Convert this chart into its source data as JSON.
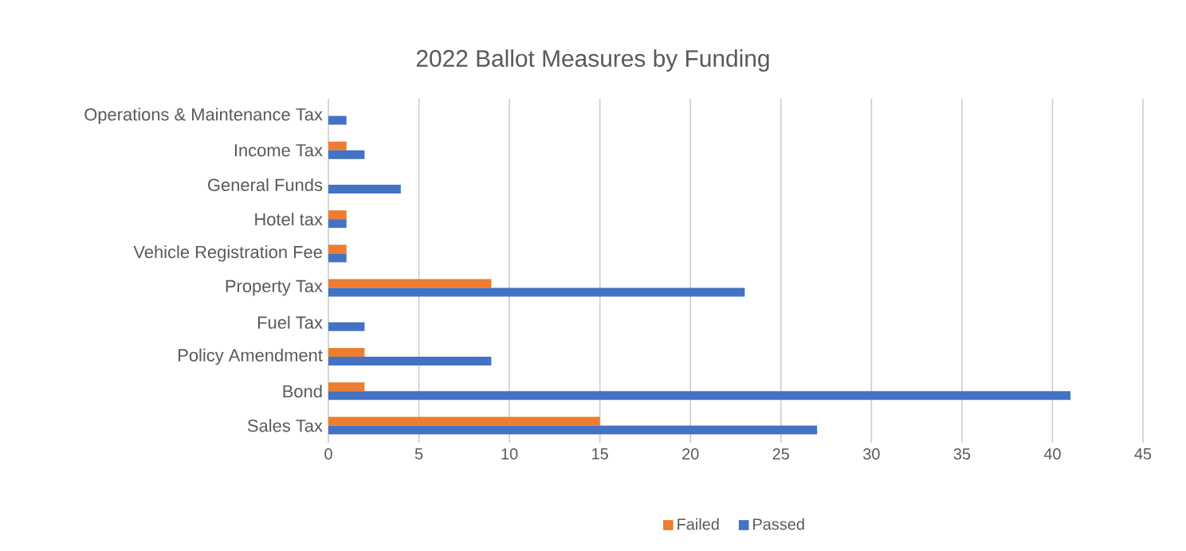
{
  "chart_data": {
    "type": "bar",
    "orientation": "horizontal",
    "title": "2022 Ballot Measures by Funding",
    "categories": [
      "Operations & Maintenance Tax",
      "Income Tax",
      "General Funds",
      "Hotel tax",
      "Vehicle Registration Fee",
      "Property Tax",
      "Fuel Tax",
      "Policy Amendment",
      "Bond",
      "Sales Tax"
    ],
    "series": [
      {
        "name": "Failed",
        "color": "#ed7d31",
        "values": [
          0,
          1,
          0,
          1,
          1,
          9,
          0,
          2,
          2,
          15
        ]
      },
      {
        "name": "Passed",
        "color": "#4472c4",
        "values": [
          1,
          2,
          4,
          1,
          1,
          23,
          2,
          9,
          41,
          27
        ]
      }
    ],
    "xlim": [
      0,
      45
    ],
    "xticks": [
      0,
      5,
      10,
      15,
      20,
      25,
      30,
      35,
      40,
      45
    ],
    "grid": "x",
    "legend": "bottom"
  }
}
